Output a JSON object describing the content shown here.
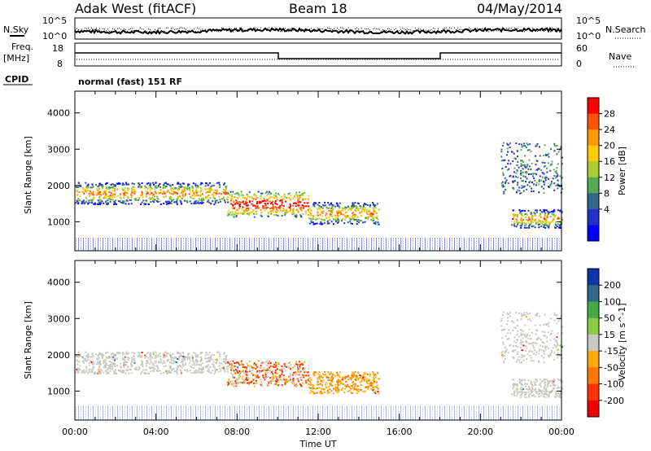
{
  "header": {
    "station": "Adak West (fitACF)",
    "beam": "Beam 18",
    "date": "04/May/2014"
  },
  "summary_panels": {
    "nsky_label": "N.Sky",
    "nsky_ticks": [
      "10^5",
      "10^0"
    ],
    "nsearch_label": "N.Search",
    "nsearch_ticks": [
      "10^5",
      "10^0"
    ],
    "freq_label": "Freq.",
    "freq_unit": "[MHz]",
    "freq_ticks": [
      "18",
      "8"
    ],
    "nave_label": "Nave",
    "nave_ticks": [
      "60",
      "0"
    ],
    "cpid_label": "CPID",
    "cpid_text": "normal (fast) 151 RF"
  },
  "chart_data": [
    {
      "type": "heatmap",
      "name": "power-panel",
      "ylabel": "Slant Range [km]",
      "yticks": [
        "4000",
        "3000",
        "2000",
        "1000"
      ],
      "ylim": [
        200,
        4600
      ],
      "xlim": [
        0,
        24
      ],
      "colorbar_label": "Power [dB]",
      "colorbar_ticks": [
        "28",
        "24",
        "20",
        "16",
        "12",
        "8",
        "4"
      ],
      "colorbar_colors": [
        "#ff0000",
        "#ff5500",
        "#ff9900",
        "#ffcc00",
        "#aacc33",
        "#55aa55",
        "#336688",
        "#2233cc",
        "#0000ff"
      ],
      "scatter_bands": [
        {
          "t_start": 0.0,
          "t_end": 7.5,
          "range_center": 1800,
          "range_width": 300
        },
        {
          "t_start": 7.5,
          "t_end": 11.5,
          "range_center": 1500,
          "range_width": 350
        },
        {
          "t_start": 11.5,
          "t_end": 15.0,
          "range_center": 1250,
          "range_width": 300
        },
        {
          "t_start": 21.5,
          "t_end": 24.0,
          "range_center": 1100,
          "range_width": 250
        },
        {
          "t_start": 21.0,
          "t_end": 24.0,
          "range_center": 2500,
          "range_width": 700
        }
      ]
    },
    {
      "type": "heatmap",
      "name": "velocity-panel",
      "ylabel": "Slant Range [km]",
      "yticks": [
        "4000",
        "3000",
        "2000",
        "1000"
      ],
      "ylim": [
        200,
        4600
      ],
      "xlim": [
        0,
        24
      ],
      "colorbar_label": "Velocity [m s^-1]",
      "colorbar_ticks": [
        "200",
        "100",
        "50",
        "15",
        "-15",
        "-50",
        "-100",
        "-200"
      ],
      "colorbar_colors": [
        "#1133aa",
        "#336688",
        "#44aa44",
        "#88cc44",
        "#c8c8c0",
        "#ffaa00",
        "#ff7700",
        "#ff3300",
        "#ee0000"
      ],
      "xlabel": "Time UT",
      "xticks": [
        "00:00",
        "04:00",
        "08:00",
        "12:00",
        "16:00",
        "20:00",
        "00:00"
      ]
    }
  ]
}
